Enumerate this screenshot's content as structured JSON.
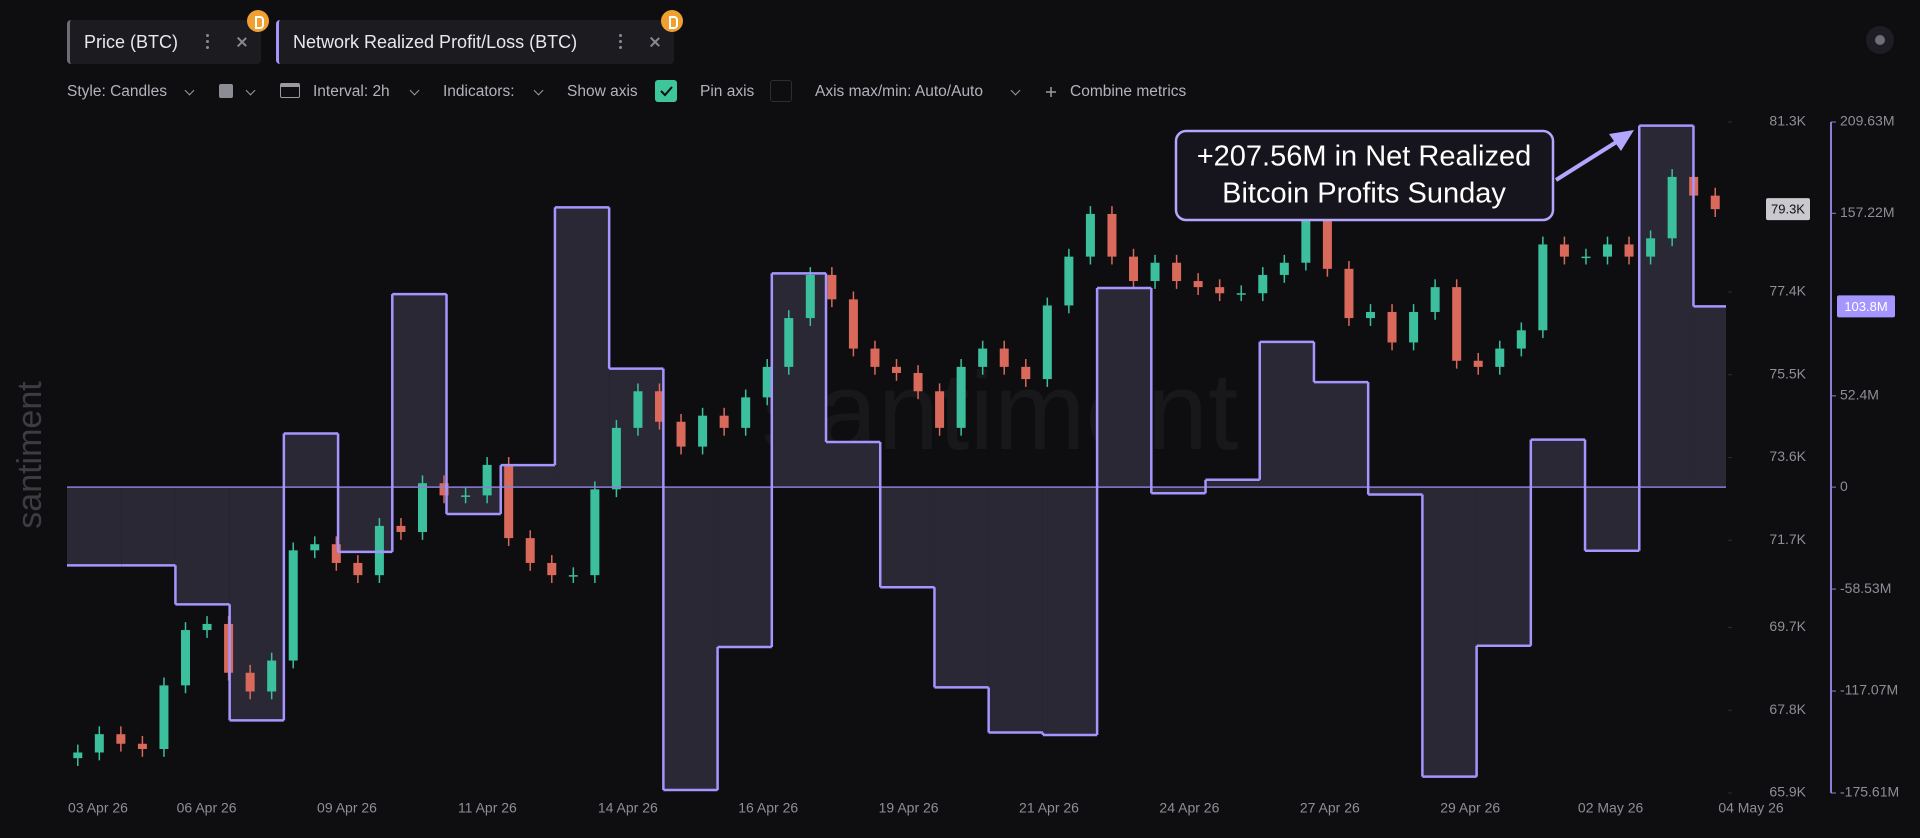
{
  "watermark": "santiment",
  "toolbar": {
    "style": "Style: Candles",
    "interval": "Interval: 2h",
    "indicators": "Indicators:",
    "show_axis": "Show axis",
    "show_axis_checked": true,
    "pin_axis": "Pin axis",
    "pin_axis_checked": false,
    "axis_range": "Axis max/min: Auto/Auto",
    "combine": "Combine metrics"
  },
  "chart_data": {
    "type": "candlestick",
    "annotation": [
      "+207.56M in Net Realized",
      "Bitcoin Profits Sunday"
    ],
    "xtick_labels": [
      "03 Apr 26",
      "06 Apr 26",
      "09 Apr 26",
      "11 Apr 26",
      "14 Apr 26",
      "16 Apr 26",
      "19 Apr 26",
      "21 Apr 26",
      "24 Apr 26",
      "27 Apr 26",
      "29 Apr 26",
      "02 May 26",
      "04 May 26"
    ],
    "ylim": [
      65900,
      81300
    ],
    "yticks": [
      {
        "value": 81300,
        "label": "81.3K"
      },
      {
        "value": 77400,
        "label": "77.4K"
      },
      {
        "value": 75500,
        "label": "75.5K"
      },
      {
        "value": 73600,
        "label": "73.6K"
      },
      {
        "value": 71700,
        "label": "71.7K"
      },
      {
        "value": 69700,
        "label": "69.7K"
      },
      {
        "value": 67800,
        "label": "67.8K"
      },
      {
        "value": 65900,
        "label": "65.9K"
      }
    ],
    "y2lim": [
      -175610000,
      209630000
    ],
    "y2ticks": [
      {
        "value": 209630000,
        "label": "209.63M"
      },
      {
        "value": 157220000,
        "label": "157.22M"
      },
      {
        "value": 52400000,
        "label": "52.4M"
      },
      0,
      {
        "value": -58530000,
        "label": "-58.53M"
      },
      {
        "value": -117070000,
        "label": "-117.07M"
      },
      {
        "value": -175610000,
        "label": "-175.61M"
      }
    ],
    "grid": false,
    "series": [
      {
        "name": "Price (BTC)",
        "type": "candlestick",
        "up_color": "#3bbf9c",
        "down_color": "#d9695a",
        "open": [
          66700,
          66830,
          67250,
          67030,
          66910,
          68370,
          69640,
          69780,
          68660,
          68230,
          68940,
          71470,
          71610,
          71180,
          70900,
          72030,
          71890,
          73010,
          72730,
          72730,
          73430,
          71750,
          71180,
          70900,
          70900,
          72870,
          74280,
          75120,
          74420,
          73850,
          74560,
          74280,
          74980,
          75680,
          76800,
          77790,
          77230,
          76100,
          75680,
          75540,
          75120,
          74280,
          75680,
          76100,
          75680,
          75400,
          77090,
          78210,
          79190,
          78210,
          77650,
          78070,
          77650,
          77510,
          77370,
          77370,
          77790,
          78070,
          79050,
          77930,
          76800,
          76940,
          76240,
          76940,
          77510,
          75820,
          75680,
          76100,
          76520,
          78490,
          78210,
          78210,
          78490,
          78210,
          78630,
          80040,
          79610
        ],
        "high": [
          67010,
          67430,
          67430,
          67210,
          68550,
          69820,
          69960,
          69960,
          68840,
          69120,
          71650,
          71790,
          71790,
          71360,
          72210,
          72210,
          73190,
          73190,
          72910,
          73610,
          73610,
          71930,
          71360,
          71080,
          73050,
          74460,
          75300,
          75300,
          74600,
          74740,
          74740,
          75160,
          75860,
          76980,
          77970,
          77970,
          77410,
          76280,
          75860,
          75720,
          75300,
          75860,
          76280,
          76280,
          75860,
          77270,
          78390,
          79370,
          79370,
          78390,
          78250,
          78250,
          77830,
          77690,
          77550,
          77970,
          78250,
          79230,
          79230,
          78110,
          77120,
          77120,
          77120,
          77690,
          77690,
          76000,
          76280,
          76700,
          78670,
          78670,
          78390,
          78670,
          78670,
          78810,
          80220,
          80220,
          79790
        ],
        "low": [
          66520,
          66650,
          66850,
          66730,
          66730,
          68190,
          69460,
          68480,
          68050,
          68050,
          68760,
          71290,
          71000,
          70720,
          70720,
          71710,
          71710,
          72550,
          72550,
          72550,
          71570,
          71000,
          70720,
          70720,
          70720,
          72690,
          74100,
          74240,
          73670,
          73670,
          74100,
          74100,
          74800,
          75500,
          76620,
          77050,
          75920,
          75500,
          75360,
          74940,
          74100,
          74100,
          75500,
          75500,
          75220,
          75220,
          76910,
          78030,
          78030,
          77470,
          77470,
          77470,
          77330,
          77190,
          77190,
          77190,
          77610,
          77890,
          77750,
          76620,
          76620,
          76060,
          76060,
          76760,
          75640,
          75500,
          75500,
          75920,
          76340,
          78030,
          78030,
          78030,
          78030,
          78030,
          78450,
          79430,
          79120
        ],
        "close": [
          66830,
          67250,
          67030,
          66910,
          68370,
          69640,
          69780,
          68660,
          68230,
          68940,
          71470,
          71610,
          71180,
          70900,
          72030,
          71890,
          73010,
          72730,
          72730,
          73430,
          71750,
          71180,
          70900,
          70900,
          72870,
          74280,
          75120,
          74420,
          73850,
          74560,
          74280,
          74980,
          75680,
          76800,
          77790,
          77230,
          76100,
          75680,
          75540,
          75120,
          74280,
          75680,
          76100,
          75680,
          75400,
          77090,
          78210,
          79190,
          78210,
          77650,
          78070,
          77650,
          77510,
          77370,
          77370,
          77790,
          78070,
          79050,
          77930,
          76800,
          76940,
          76240,
          76940,
          77510,
          75820,
          75680,
          76100,
          76520,
          78490,
          78210,
          78210,
          78490,
          78210,
          78630,
          80040,
          79610,
          79300
        ],
        "value_labels": [
          null,
          null,
          null,
          null,
          null,
          null,
          null,
          null,
          null,
          null,
          null,
          null,
          null,
          null,
          null,
          null,
          null,
          null,
          null,
          null,
          null,
          null,
          null,
          null,
          null,
          null,
          null,
          null,
          null,
          null,
          null,
          null,
          null,
          null,
          null,
          null,
          null,
          null,
          null,
          null,
          null,
          null,
          null,
          null,
          null,
          null,
          null,
          null,
          null,
          null,
          null,
          null,
          null,
          null,
          null,
          null,
          null,
          null,
          null,
          null,
          null,
          null,
          null,
          null,
          null,
          null,
          null,
          null,
          null,
          null,
          null,
          null,
          null,
          null,
          null,
          null,
          "79.3K"
        ]
      },
      {
        "name": "Network Realized Profit/Loss (BTC)",
        "type": "step",
        "axis": "y2",
        "color": "#a596ff",
        "fill": "#2a2834",
        "values": [
          -44900000,
          -44900000,
          -67300000,
          -133900000,
          30800000,
          -37200000,
          110800000,
          -15400000,
          12600000,
          160600000,
          68000000,
          -173900000,
          -91800000,
          122700000,
          25900000,
          -57500000,
          -115000000,
          -140900000,
          -142300000,
          114300000,
          -3500000,
          4200000,
          83400000,
          60300000,
          -4200000,
          -166200000,
          -91100000,
          27300000,
          -36500000,
          207560000,
          103800000
        ],
        "value_labels": [
          null,
          null,
          null,
          null,
          null,
          null,
          null,
          null,
          null,
          null,
          null,
          null,
          null,
          null,
          null,
          null,
          null,
          null,
          null,
          null,
          null,
          null,
          null,
          null,
          null,
          null,
          null,
          null,
          null,
          null,
          "103.8M"
        ]
      }
    ]
  }
}
